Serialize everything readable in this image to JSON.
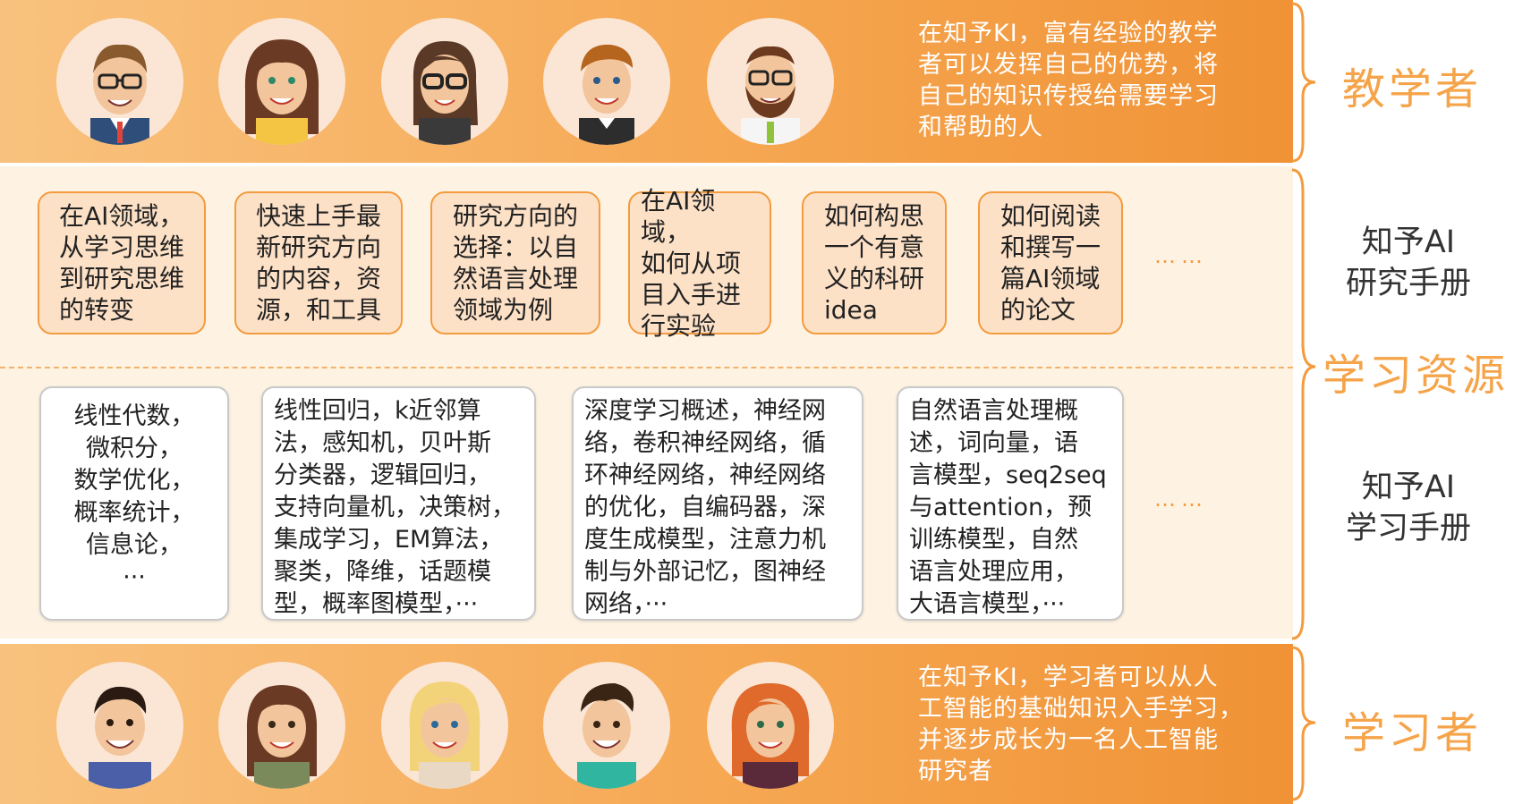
{
  "teachers": {
    "description": "在知予KI，富有经验的教学\n者可以发挥自己的优势，将\n自己的知识传授给需要学习\n和帮助的人",
    "label": "教学者"
  },
  "research_manual": {
    "label": "知予AI\n研究手册",
    "cards": [
      "在AI领域，\n从学习思维\n到研究思维\n的转变",
      "快速上手最\n新研究方向\n的内容，资\n源，和工具",
      "研究方向的\n选择：以自\n然语言处理\n领域为例",
      "在AI领域，\n如何从项\n目入手进\n行实验",
      "如何构思\n一个有意\n义的科研\nidea",
      "如何阅读\n和撰写一\n篇AI领域\n的论文"
    ],
    "ellipsis": "……"
  },
  "learning_resources": {
    "label": "学习资源"
  },
  "learning_manual": {
    "label": "知予AI\n学习手册",
    "cards": [
      "线性代数，\n微积分，\n数学优化，\n概率统计，\n信息论，\n···",
      "线性回归，k近邻算\n法，感知机，贝叶斯\n分类器，逻辑回归，\n支持向量机，决策树，\n集成学习，EM算法，\n聚类，降维，话题模\n型，概率图模型，···",
      "深度学习概述，神经网\n络，卷积神经网络，循\n环神经网络，神经网络\n的优化，自编码器，深\n度生成模型，注意力机\n制与外部记忆，图神经\n网络，···",
      "自然语言处理概\n述，词向量，语\n言模型，seq2seq\n与attention，预\n训练模型，自然\n语言处理应用，\n大语言模型，···"
    ],
    "ellipsis": "……"
  },
  "learners": {
    "description": "在知予KI，学习者可以从人\n工智能的基础知识入手学习，\n并逐步成长为一名人工智能\n研究者",
    "label": "学习者"
  },
  "colors": {
    "accent_orange": "#f39b3e",
    "band_light": "#fef3e3",
    "card_fill": "#fde1c7"
  }
}
